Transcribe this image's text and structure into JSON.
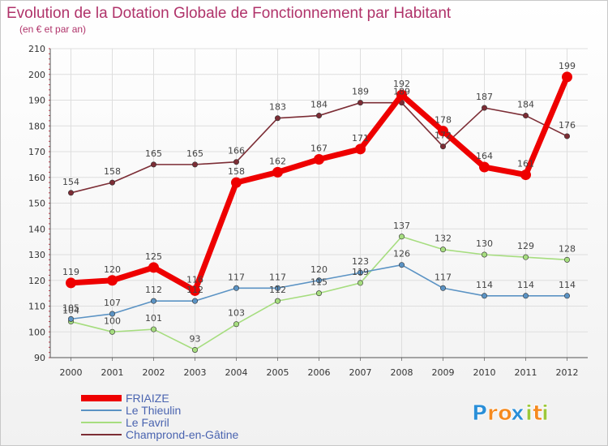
{
  "chart_data": {
    "type": "line",
    "title": "Evolution de la Dotation Globale de Fonctionnement par Habitant",
    "subtitle": "(en € et par an)",
    "categories": [
      "2000",
      "2001",
      "2002",
      "2003",
      "2004",
      "2005",
      "2006",
      "2007",
      "2008",
      "2009",
      "2010",
      "2011",
      "2012"
    ],
    "ylim": [
      90,
      210
    ],
    "yticks": [
      90,
      100,
      110,
      120,
      130,
      140,
      150,
      160,
      170,
      180,
      190,
      200,
      210
    ],
    "grid": true,
    "series": [
      {
        "name": "FRIAIZE",
        "color": "#ee0000",
        "values": [
          119,
          120,
          125,
          116,
          158,
          162,
          167,
          171,
          192,
          178,
          164,
          161,
          199
        ]
      },
      {
        "name": "Le Thieulin",
        "color": "#5b93c4",
        "values": [
          105,
          107,
          112,
          112,
          117,
          117,
          120,
          123,
          126,
          117,
          114,
          114,
          114
        ]
      },
      {
        "name": "Le Favril",
        "color": "#a6dd7f",
        "values": [
          104,
          100,
          101,
          93,
          103,
          112,
          115,
          119,
          137,
          132,
          130,
          129,
          128
        ]
      },
      {
        "name": "Champrond-en-Gâtine",
        "color": "#7c2d35",
        "values": [
          154,
          158,
          165,
          165,
          166,
          183,
          184,
          189,
          189,
          172,
          187,
          184,
          176
        ]
      }
    ]
  },
  "brand": {
    "logo_letters": [
      "P",
      "r",
      "o",
      "x",
      "i",
      "t",
      "i"
    ],
    "logo_colors": [
      "#2a8fd8",
      "#f58a1f",
      "#f58a1f",
      "#2a8fd8",
      "#9cc83a",
      "#f58a1f",
      "#9cc83a"
    ]
  }
}
